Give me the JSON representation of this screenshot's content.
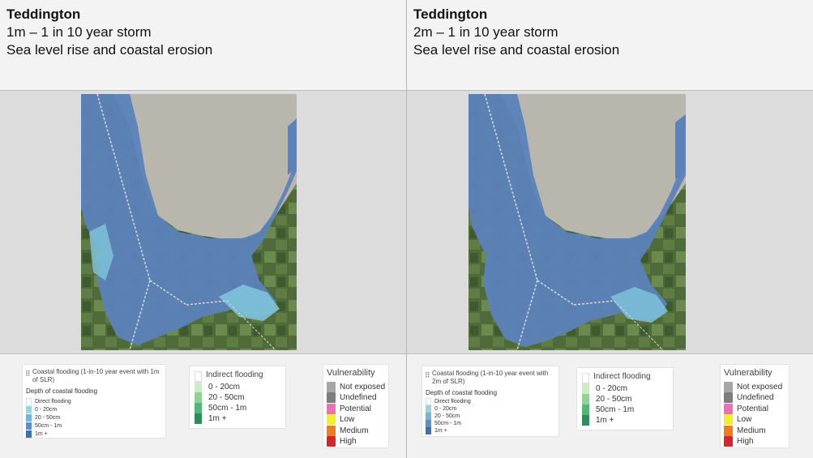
{
  "panels": [
    {
      "title": "Teddington",
      "scenario": "1m – 1 in 10 year storm",
      "subtitle": "Sea level rise and coastal erosion",
      "coastal_legend": {
        "title": "Coastal flooding (1-in-10 year event with 1m of SLR)",
        "subtitle": "Depth of coastal flooding",
        "items": [
          "Direct flooding",
          "0 - 20cm",
          "20 - 50cm",
          "50cm - 1m",
          "1m +"
        ]
      }
    },
    {
      "title": "Teddington",
      "scenario": "2m – 1 in 10 year storm",
      "subtitle": "Sea level rise and coastal erosion",
      "coastal_legend": {
        "title": "Coastal flooding (1-in-10 year event with 2m of SLR)",
        "subtitle": "Depth of coastal flooding",
        "items": [
          "Direct flooding",
          "0 - 20cm",
          "20 - 50cm",
          "50cm - 1m",
          "1m +"
        ]
      }
    }
  ],
  "indirect_legend": {
    "title": "Indirect flooding",
    "items": [
      "0 - 20cm",
      "20 - 50cm",
      "50cm - 1m",
      "1m +"
    ]
  },
  "vulnerability_legend": {
    "title": "Vulnerability",
    "items": [
      "Not exposed",
      "Undefined",
      "Potential",
      "Low",
      "Medium",
      "High"
    ]
  },
  "colors": {
    "coastal": [
      "#ffffff",
      "#9bd3e6",
      "#74b6d8",
      "#5b92c4",
      "#3f6fae"
    ],
    "indirect": [
      "#ffffff",
      "#cdebc9",
      "#93d199",
      "#55b47a",
      "#2f8c5c"
    ],
    "vulnerability": [
      "#a6a6a6",
      "#7d7d7d",
      "#ee6fb7",
      "#f4ef2b",
      "#f07c1f",
      "#d7262b"
    ],
    "flood_deep": "#5b82ba",
    "flood_shallow": "#7ec2d9",
    "land": "#4f6b3a",
    "sea": "#b9b7ad"
  }
}
